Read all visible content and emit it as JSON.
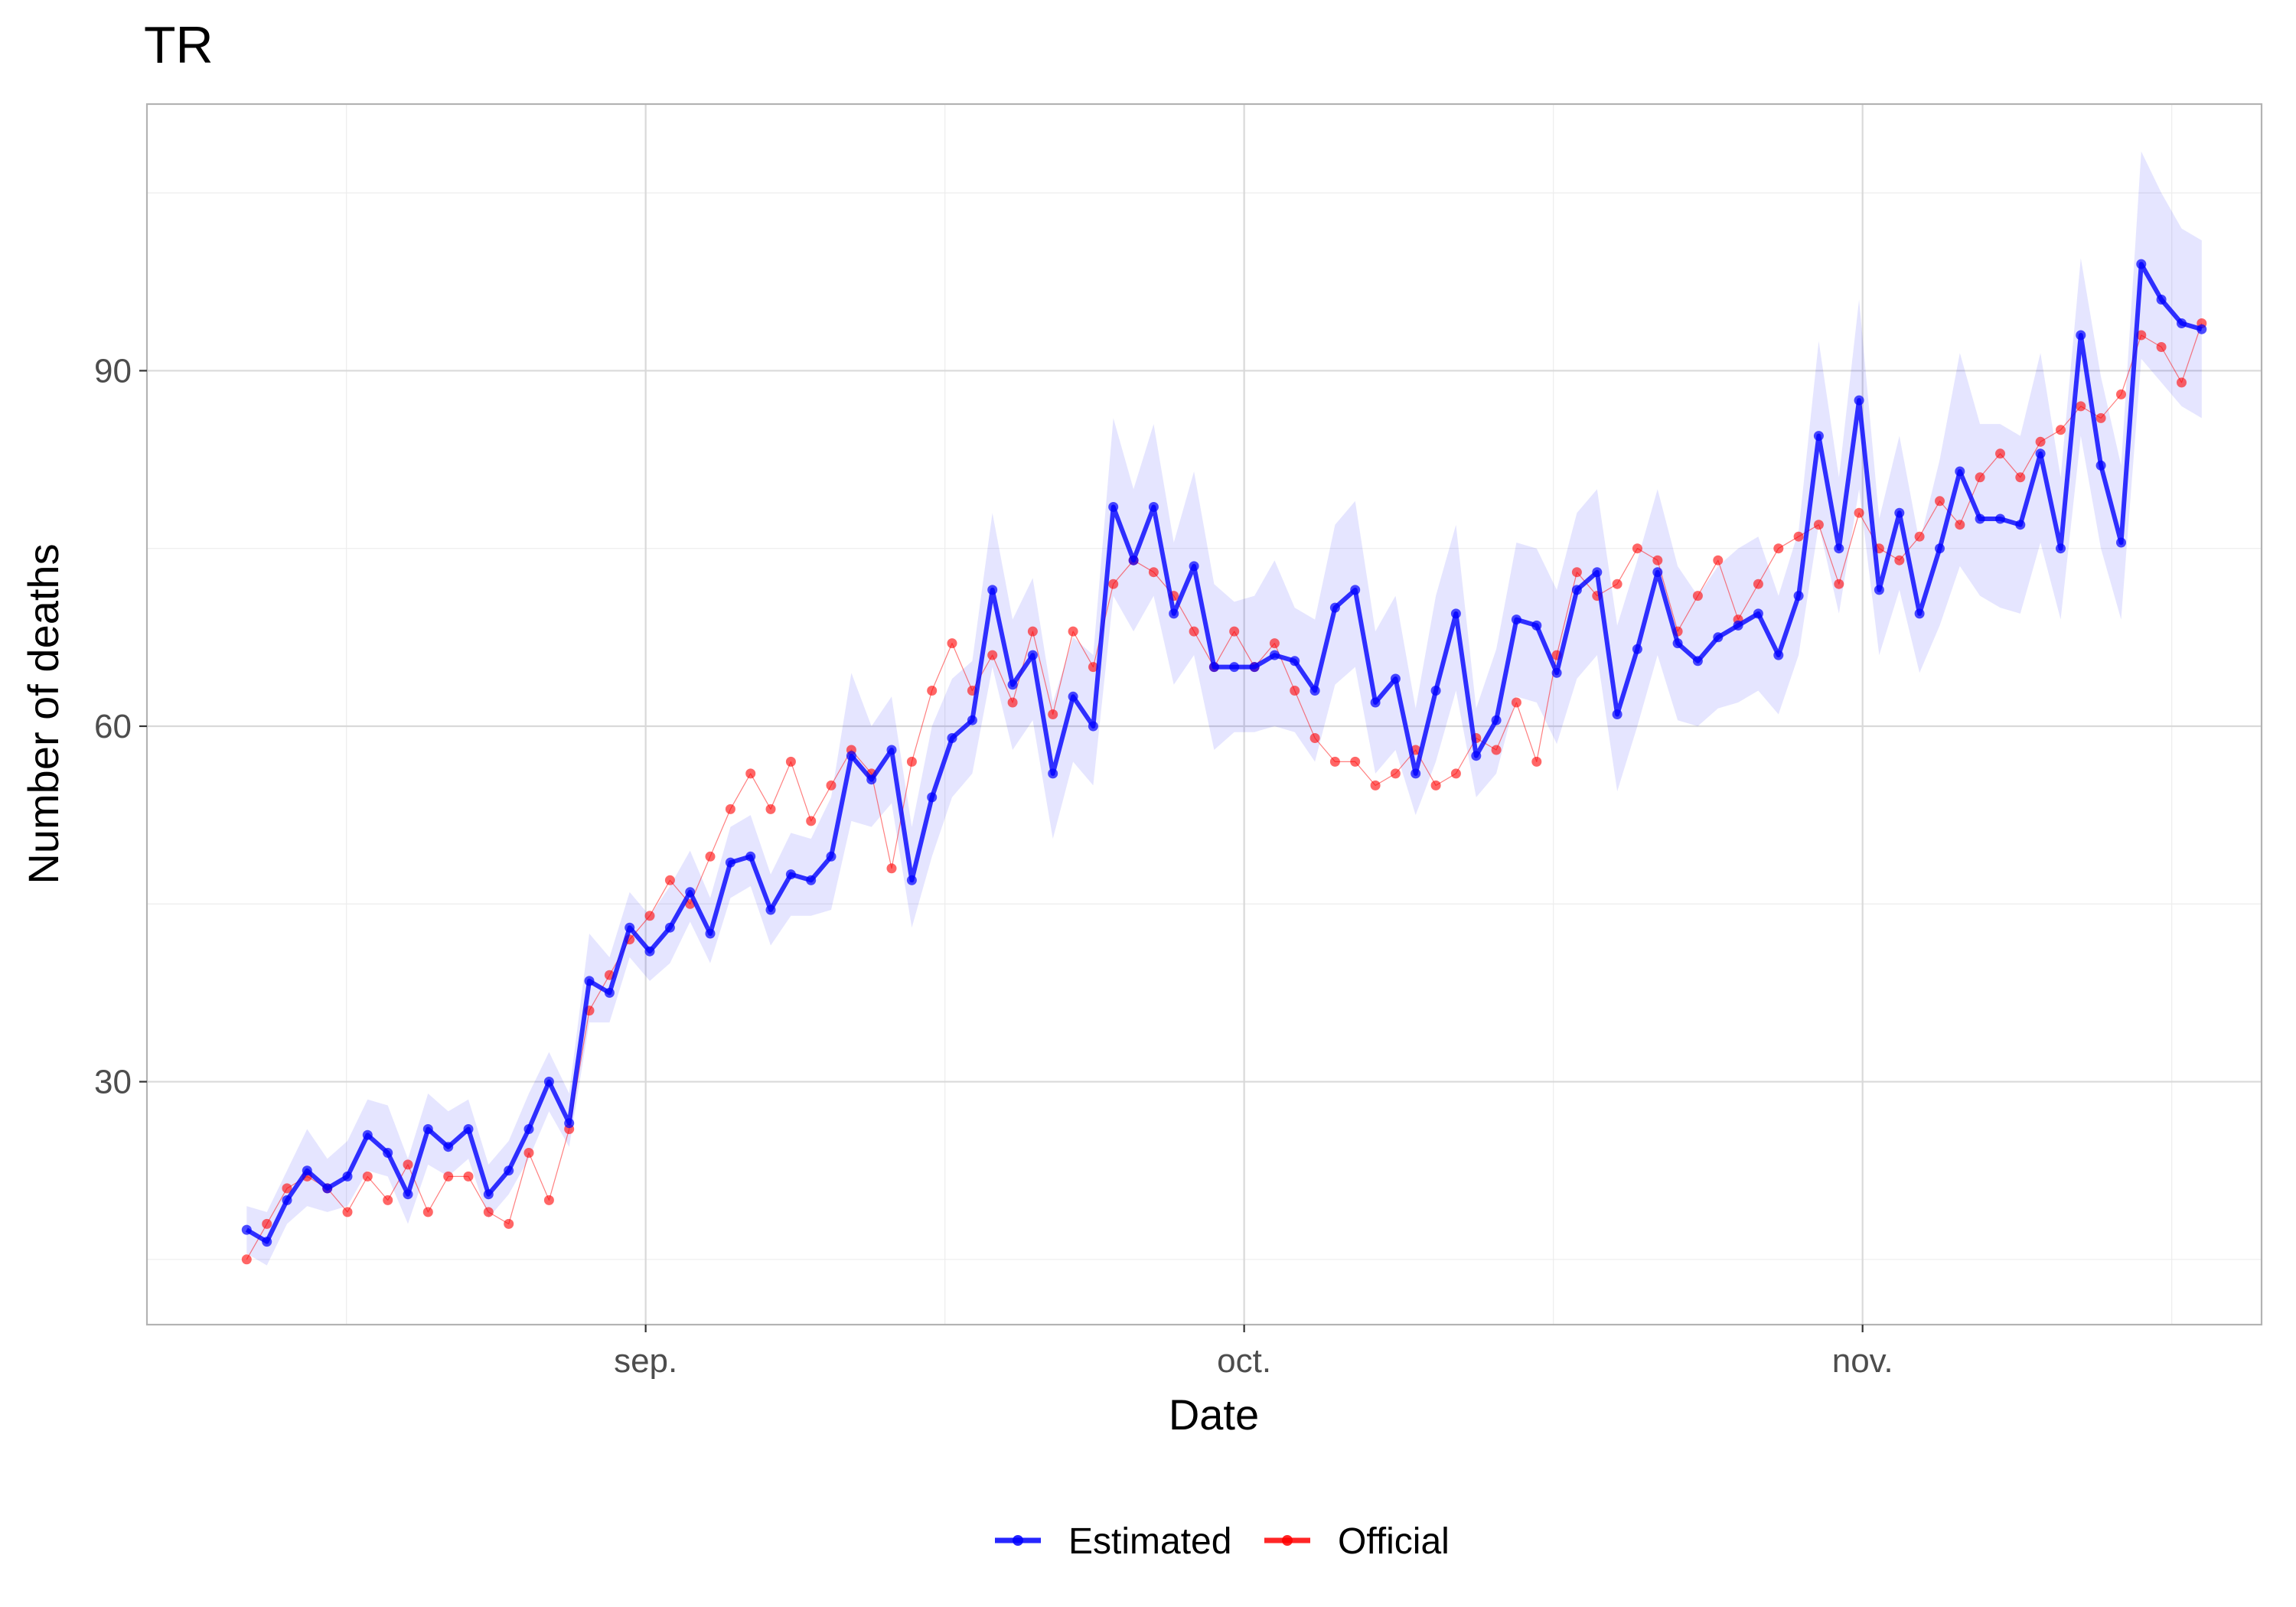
{
  "chart_data": {
    "type": "line",
    "title": "TR",
    "xlabel": "Date",
    "ylabel": "Number of deaths",
    "ylim": [
      9.5,
      112.5
    ],
    "yticks": [
      30,
      60,
      90
    ],
    "x_start_day": 0,
    "x_end_day": 98,
    "x_range_days": [
      -5,
      101
    ],
    "x_ticks": [
      {
        "day": 20,
        "label": "sep."
      },
      {
        "day": 50,
        "label": "oct."
      },
      {
        "day": 81,
        "label": "nov."
      }
    ],
    "x_minor_days": [
      5,
      35,
      65.5,
      96.5
    ],
    "y_minor": [
      15,
      45,
      75,
      105
    ],
    "legend": [
      {
        "name": "Estimated",
        "color": "#0000ff"
      },
      {
        "name": "Official",
        "color": "#ff0000"
      }
    ],
    "series": [
      {
        "name": "Estimated",
        "color": "#0000ff",
        "values": [
          17.5,
          16.5,
          20,
          22.5,
          21,
          22,
          25.5,
          24,
          20.5,
          26,
          24.5,
          26,
          20.5,
          22.5,
          26,
          30,
          26.5,
          38.5,
          37.5,
          43,
          41,
          43,
          46,
          42.5,
          48.5,
          49,
          44.5,
          47.5,
          47,
          49,
          57.5,
          55.5,
          58,
          47,
          54,
          59,
          60.5,
          71.5,
          63.5,
          66,
          56,
          62.5,
          60,
          78.5,
          74,
          78.5,
          69.5,
          73.5,
          65,
          65,
          65,
          66,
          65.5,
          63,
          70,
          71.5,
          62,
          64,
          56,
          63,
          69.5,
          57.5,
          60.5,
          69,
          68.5,
          64.5,
          71.5,
          73,
          61,
          66.5,
          73,
          67,
          65.5,
          67.5,
          68.5,
          69.5,
          66,
          71,
          84.5,
          75,
          87.5,
          71.5,
          78,
          69.5,
          75,
          81.5,
          77.5,
          77.5,
          77,
          83,
          75,
          93,
          82,
          75.5,
          99,
          96,
          94,
          93.5
        ]
      },
      {
        "name": "Official",
        "color": "#ff0000",
        "values": [
          15,
          18,
          21,
          22,
          21,
          19,
          22,
          20,
          23,
          19,
          22,
          22,
          19,
          18,
          24,
          20,
          26,
          36,
          39,
          42,
          44,
          47,
          45,
          49,
          53,
          56,
          53,
          57,
          52,
          55,
          58,
          56,
          48,
          57,
          63,
          67,
          63,
          66,
          62,
          68,
          61,
          68,
          65,
          72,
          74,
          73,
          71,
          68,
          65,
          68,
          65,
          67,
          63,
          59,
          57,
          57,
          55,
          56,
          58,
          55,
          56,
          59,
          58,
          62,
          57,
          66,
          73,
          71,
          72,
          75,
          74,
          68,
          71,
          74,
          69,
          72,
          75,
          76,
          77,
          72,
          78,
          75,
          74,
          76,
          79,
          77,
          81,
          83,
          81,
          84,
          85,
          87,
          86,
          88,
          93,
          92,
          89,
          94
        ]
      }
    ],
    "estimated_ci_lower": [
      15.5,
      14.5,
      18,
      19.5,
      19,
      19.5,
      22.5,
      22,
      18,
      23,
      22,
      23.5,
      18.5,
      20.5,
      23.5,
      27.5,
      24.5,
      35,
      35,
      40.5,
      38.5,
      40,
      43.5,
      40,
      45.5,
      46.5,
      41.5,
      44,
      44,
      44.5,
      52,
      51.5,
      53.5,
      43,
      49,
      54,
      56,
      65,
      58,
      60.5,
      50.5,
      57,
      55,
      71,
      68,
      71,
      63.5,
      66,
      58,
      59.5,
      59.5,
      60,
      59.5,
      57,
      63.5,
      65,
      56,
      58,
      52.5,
      57,
      63,
      54,
      56,
      62.5,
      62,
      58.5,
      64,
      66,
      54.5,
      60,
      66,
      60.5,
      60,
      61.5,
      62,
      63,
      61,
      66,
      77,
      69.5,
      80,
      66,
      71.5,
      64.5,
      68.5,
      73.5,
      71,
      70,
      69.5,
      75.5,
      69,
      84.5,
      75,
      69,
      91,
      89,
      87,
      86
    ],
    "estimated_ci_upper": [
      19.5,
      19,
      22.5,
      26,
      23.5,
      25,
      28.5,
      28,
      23.5,
      29,
      27.5,
      28.5,
      23,
      25,
      29,
      32.5,
      29,
      42.5,
      40.5,
      46,
      44,
      46.5,
      49.5,
      45.5,
      51.5,
      52.5,
      47.5,
      51,
      50.5,
      54,
      64.5,
      60,
      62.5,
      51.5,
      60,
      64,
      65.5,
      78,
      69,
      72.5,
      62,
      67.5,
      66,
      86,
      80,
      85.5,
      75.5,
      81.5,
      72,
      70.5,
      71,
      74,
      70,
      69,
      77,
      79,
      68,
      71,
      61.5,
      71,
      77,
      61.5,
      66.5,
      75.5,
      75,
      71.5,
      78,
      80,
      68.5,
      74,
      80,
      73.5,
      71,
      73.5,
      75,
      76,
      71,
      76.5,
      92.5,
      81,
      96,
      77.5,
      84.5,
      75.5,
      82.5,
      91.5,
      85.5,
      85.5,
      84.5,
      91.5,
      81,
      99.5,
      89.5,
      82,
      108.5,
      105,
      102,
      101
    ]
  }
}
